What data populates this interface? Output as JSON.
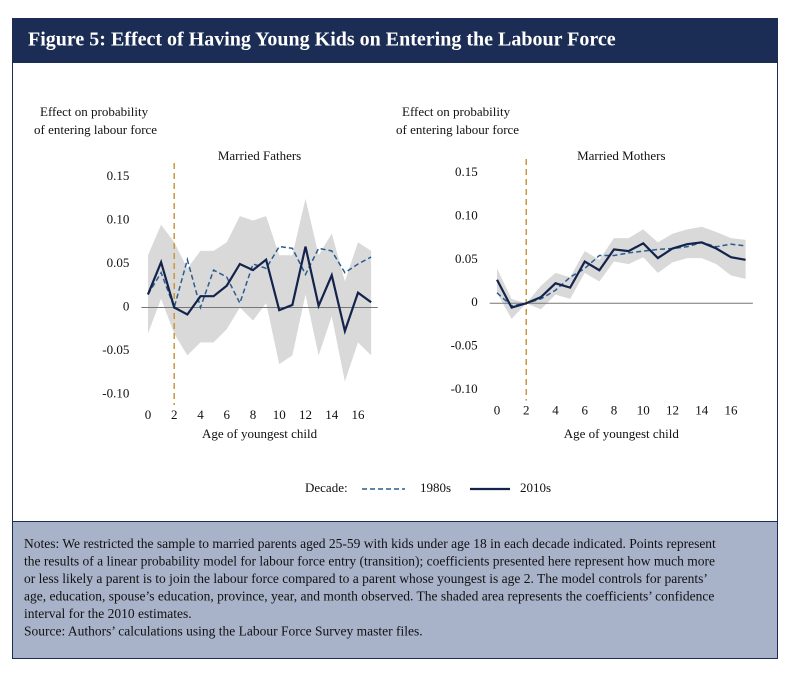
{
  "header": {
    "title": "Figure 5: Effect of Having Young Kids on Entering the Labour Force"
  },
  "legend": {
    "title": "Decade:"
  },
  "chart_data": [
    {
      "type": "line",
      "title": "Married Fathers",
      "ylabel": [
        "Effect on probability",
        "of entering labour force"
      ],
      "xlabel": "Age of youngest child",
      "x": [
        0,
        1,
        2,
        3,
        4,
        5,
        6,
        7,
        8,
        9,
        10,
        11,
        12,
        13,
        14,
        15,
        16,
        17
      ],
      "xlim": [
        -0.5,
        17.5
      ],
      "xticks": [
        0,
        2,
        4,
        6,
        8,
        10,
        12,
        14,
        16
      ],
      "ylim": [
        -0.112,
        0.166
      ],
      "yticks": [
        0.15,
        {
          "value": 0.1,
          "label": "0.10"
        },
        0.05,
        0,
        -0.05,
        {
          "value": -0.1,
          "label": "-0.10"
        }
      ],
      "hline": 0,
      "vline": 2,
      "vline_color": "#c8963e",
      "band_color": "#d9d9d9",
      "series": [
        {
          "name": "1980s",
          "color": "#2a5d8f",
          "dashed": true,
          "values": [
            0.015,
            0.04,
            0.0,
            0.055,
            0.0,
            0.043,
            0.035,
            0.005,
            0.05,
            0.045,
            0.07,
            0.068,
            0.038,
            0.068,
            0.065,
            0.04,
            0.05,
            0.058
          ]
        },
        {
          "name": "2010s",
          "color": "#14234b",
          "dashed": false,
          "values": [
            0.015,
            0.052,
            0.0,
            -0.008,
            0.013,
            0.013,
            0.025,
            0.05,
            0.043,
            0.055,
            -0.003,
            0.003,
            0.07,
            0.002,
            0.037,
            -0.027,
            0.017,
            0.006
          ],
          "ci_upper": [
            0.06,
            0.095,
            0.075,
            0.045,
            0.065,
            0.065,
            0.075,
            0.105,
            0.1,
            0.105,
            0.06,
            0.06,
            0.125,
            0.06,
            0.085,
            0.03,
            0.075,
            0.065
          ],
          "ci_lower": [
            -0.03,
            0.01,
            -0.03,
            -0.055,
            -0.04,
            -0.04,
            -0.025,
            0.0,
            -0.015,
            0.005,
            -0.065,
            -0.055,
            0.015,
            -0.055,
            -0.01,
            -0.085,
            -0.04,
            -0.055
          ]
        }
      ]
    },
    {
      "type": "line",
      "title": "Married Mothers",
      "ylabel": [
        "Effect on probability",
        "of entering labour force"
      ],
      "xlabel": "Age of youngest child",
      "x": [
        0,
        1,
        2,
        3,
        4,
        5,
        6,
        7,
        8,
        9,
        10,
        11,
        12,
        13,
        14,
        15,
        16,
        17
      ],
      "xlim": [
        -0.5,
        17.5
      ],
      "xticks": [
        0,
        2,
        4,
        6,
        8,
        10,
        12,
        14,
        16
      ],
      "ylim": [
        -0.112,
        0.166
      ],
      "yticks": [
        0.15,
        {
          "value": 0.1,
          "label": "0.10"
        },
        0.05,
        0,
        -0.05,
        {
          "value": -0.1,
          "label": "-0.10"
        }
      ],
      "hline": 0,
      "vline": 2,
      "vline_color": "#c8963e",
      "band_color": "#d9d9d9",
      "series": [
        {
          "name": "1980s",
          "color": "#2a5d8f",
          "dashed": true,
          "values": [
            0.012,
            -0.003,
            0.0,
            0.005,
            0.015,
            0.03,
            0.04,
            0.055,
            0.055,
            0.058,
            0.06,
            0.062,
            0.063,
            0.065,
            0.07,
            0.065,
            0.068,
            0.066
          ]
        },
        {
          "name": "2010s",
          "color": "#14234b",
          "dashed": false,
          "values": [
            0.027,
            -0.005,
            0.0,
            0.007,
            0.023,
            0.018,
            0.048,
            0.038,
            0.062,
            0.06,
            0.069,
            0.052,
            0.063,
            0.068,
            0.07,
            0.063,
            0.053,
            0.05
          ],
          "ci_upper": [
            0.04,
            0.005,
            0.0,
            0.02,
            0.035,
            0.03,
            0.06,
            0.05,
            0.075,
            0.075,
            0.085,
            0.07,
            0.08,
            0.085,
            0.088,
            0.082,
            0.075,
            0.073
          ],
          "ci_lower": [
            0.012,
            -0.018,
            0.0,
            -0.007,
            0.01,
            0.005,
            0.035,
            0.025,
            0.048,
            0.045,
            0.053,
            0.035,
            0.047,
            0.052,
            0.052,
            0.045,
            0.032,
            0.028
          ]
        }
      ]
    }
  ],
  "notes": {
    "lines": [
      "Notes: We restricted the sample to married parents aged 25-59 with kids under age 18 in each decade indicated. Points represent",
      "the results of a linear probability model for labour force entry (transition); coefficients presented here represent how much more",
      "or less likely a parent is to join the labour force compared to a parent whose youngest is age 2. The model controls for parents’",
      "age, education, spouse’s education, province, year, and month observed. The shaded area represents the coefficients’ confidence",
      "interval for the 2010 estimates.",
      "Source: Authors’ calculations using the Labour Force Survey master files."
    ]
  }
}
